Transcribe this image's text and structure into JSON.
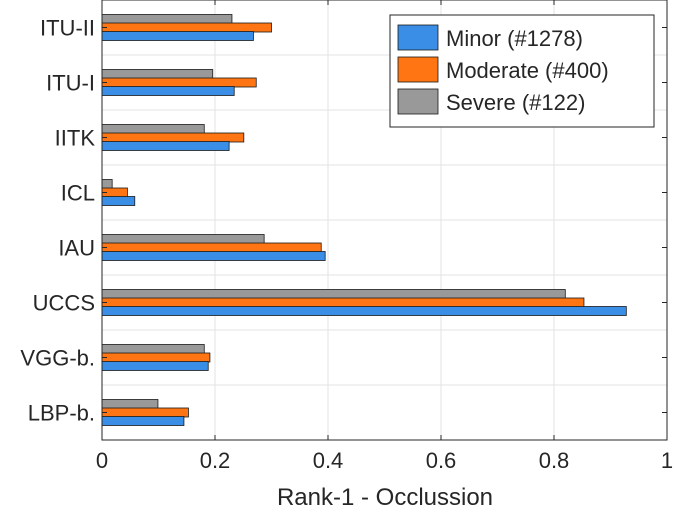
{
  "chart_data": {
    "type": "bar",
    "orientation": "horizontal",
    "categories": [
      "ITU-II",
      "ITU-I",
      "IITK",
      "ICL",
      "IAU",
      "UCCS",
      "VGG-b.",
      "LBP-b."
    ],
    "series": [
      {
        "name": "Minor (#1278)",
        "color": "#3a8ee6",
        "values": [
          0.268,
          0.234,
          0.225,
          0.058,
          0.395,
          0.928,
          0.188,
          0.145
        ]
      },
      {
        "name": "Moderate (#400)",
        "color": "#ff7413",
        "values": [
          0.3,
          0.273,
          0.251,
          0.045,
          0.388,
          0.853,
          0.191,
          0.153
        ]
      },
      {
        "name": "Severe (#122)",
        "color": "#999999",
        "values": [
          0.23,
          0.196,
          0.181,
          0.018,
          0.287,
          0.82,
          0.181,
          0.099
        ]
      }
    ],
    "xlabel": "Rank-1 - Occlussion",
    "ylabel": "",
    "xlim": [
      0,
      1
    ],
    "xticks": [
      "0",
      "0.2",
      "0.4",
      "0.6",
      "0.8",
      "1"
    ],
    "grid": true,
    "legend_position": "top-right"
  }
}
